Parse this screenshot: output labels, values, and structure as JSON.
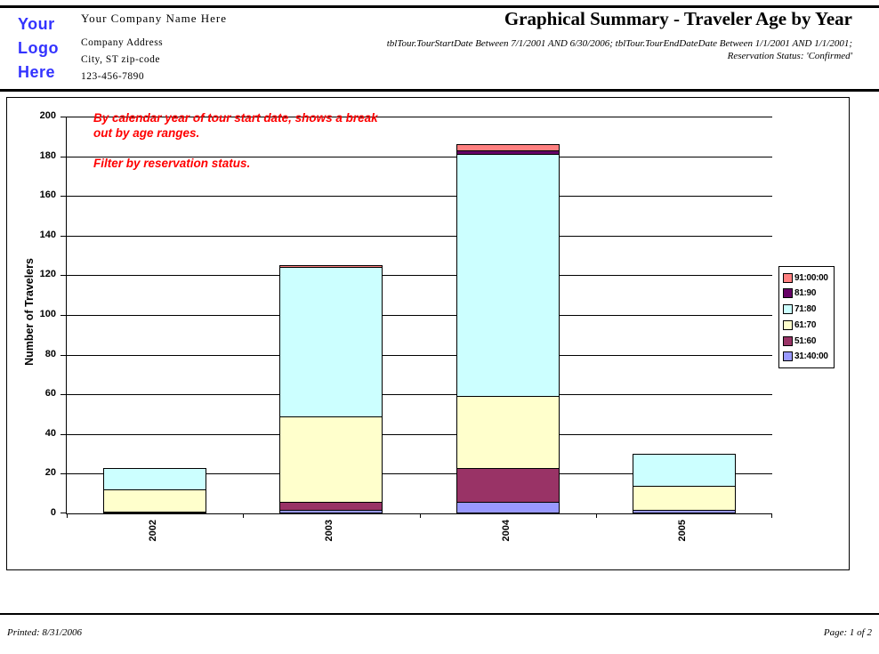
{
  "header": {
    "logo_line1": "Your",
    "logo_line2": "Logo",
    "logo_line3": "Here",
    "company_name": "Your Company Name Here",
    "company_address": "Company Address",
    "company_city": "City, ST zip-code",
    "company_phone": "123-456-7890",
    "title": "Graphical Summary - Traveler Age by Year",
    "criteria_line1": "tblTour.TourStartDate Between 7/1/2001 AND 6/30/2006; tblTour.TourEndDateDate Between 1/1/2001 AND 1/1/2001;",
    "criteria_line2": "Reservation Status: 'Confirmed'"
  },
  "footer": {
    "printed": "Printed: 8/31/2006",
    "page": "Page: 1 of 2"
  },
  "colors": {
    "logo_blue": "#3333FF",
    "annotation_red": "#FF0000"
  },
  "chart_data": {
    "type": "bar",
    "stacked": true,
    "annotation_para1": "By calendar year of tour start date, shows a break out by age ranges.",
    "annotation_para2": "Filter by reservation status.",
    "ylabel": "Number of Travelers",
    "ylim": [
      0,
      200
    ],
    "ytick_step": 20,
    "grid": true,
    "legend_position": "right",
    "categories": [
      "2002",
      "2003",
      "2004",
      "2005"
    ],
    "series": [
      {
        "name": "31:40:00",
        "color": "#9999FF",
        "values": [
          1,
          2,
          6,
          2
        ]
      },
      {
        "name": "51:60",
        "color": "#993366",
        "values": [
          0,
          4,
          17,
          0
        ]
      },
      {
        "name": "61:70",
        "color": "#FFFFCC",
        "values": [
          11,
          43,
          36,
          12
        ]
      },
      {
        "name": "71:80",
        "color": "#CCFFFF",
        "values": [
          11,
          75,
          122,
          16
        ]
      },
      {
        "name": "81:90",
        "color": "#660066",
        "values": [
          0,
          0,
          2,
          0
        ]
      },
      {
        "name": "91:00:00",
        "color": "#FF8080",
        "values": [
          0,
          1,
          3,
          0
        ]
      }
    ]
  }
}
